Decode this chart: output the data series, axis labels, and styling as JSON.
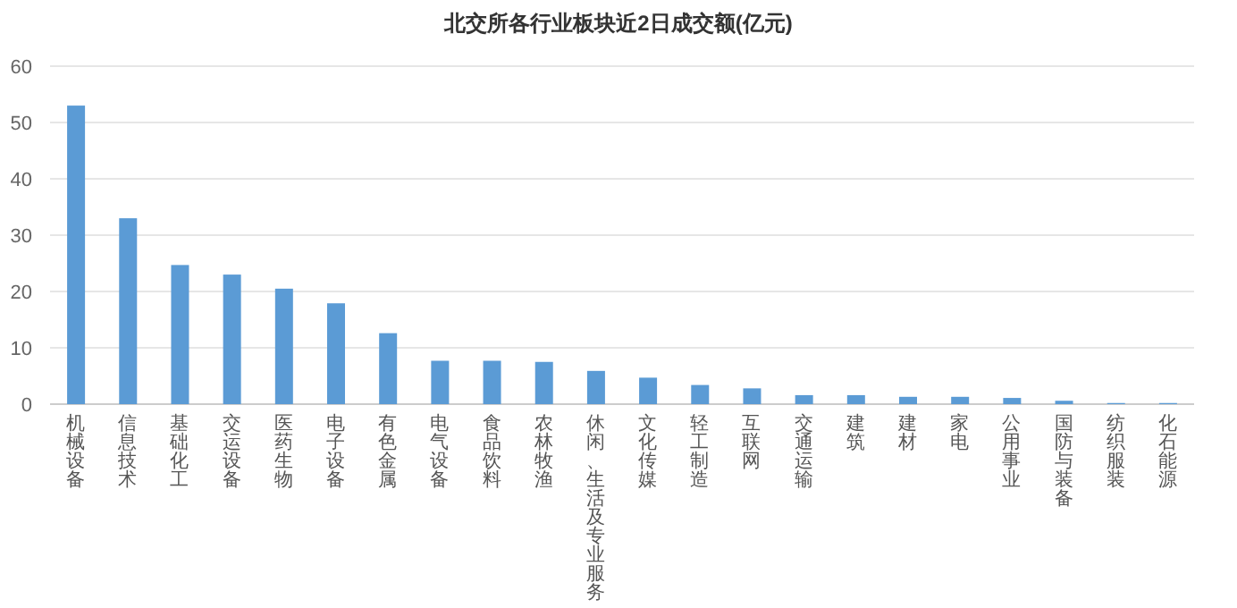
{
  "chart_data": {
    "type": "bar",
    "title": "北交所各行业板块近2日成交额(亿元)",
    "categories": [
      "机械设备",
      "信息技术",
      "基础化工",
      "交运设备",
      "医药生物",
      "电子设备",
      "有色金属",
      "电气设备",
      "食品饮料",
      "农林牧渔",
      "休闲、生活及专业服务",
      "文化传媒",
      "轻工制造",
      "互联网",
      "交通运输",
      "建筑",
      "建材",
      "家电",
      "公用事业",
      "国防与装备",
      "纺织服装",
      "化石能源"
    ],
    "values": [
      53,
      33,
      24.7,
      23,
      20.5,
      17.9,
      12.6,
      7.7,
      7.7,
      7.5,
      5.9,
      4.7,
      3.4,
      2.8,
      1.6,
      1.6,
      1.3,
      1.3,
      1.1,
      0.6,
      0.2,
      0.2
    ],
    "color": "#5b9bd5",
    "ylim": [
      0,
      60
    ],
    "yticks": [
      0,
      10,
      20,
      30,
      40,
      50,
      60
    ],
    "grid": "y"
  }
}
